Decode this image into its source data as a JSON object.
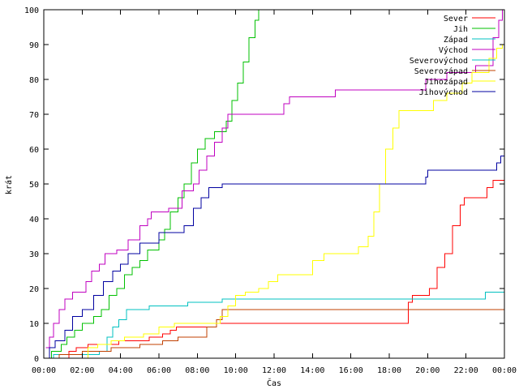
{
  "chart_data": {
    "type": "line",
    "xlabel": "Čas",
    "ylabel": "krát",
    "xlim": [
      0,
      24
    ],
    "ylim": [
      0,
      100
    ],
    "grid": false,
    "legend_position": "top-right",
    "x_ticks": [
      {
        "value": 0,
        "label": "00:00"
      },
      {
        "value": 2,
        "label": "02:00"
      },
      {
        "value": 4,
        "label": "04:00"
      },
      {
        "value": 6,
        "label": "06:00"
      },
      {
        "value": 8,
        "label": "08:00"
      },
      {
        "value": 10,
        "label": "10:00"
      },
      {
        "value": 12,
        "label": "12:00"
      },
      {
        "value": 14,
        "label": "14:00"
      },
      {
        "value": 16,
        "label": "16:00"
      },
      {
        "value": 18,
        "label": "18:00"
      },
      {
        "value": 20,
        "label": "20:00"
      },
      {
        "value": 22,
        "label": "22:00"
      },
      {
        "value": 24,
        "label": "00:00"
      }
    ],
    "y_ticks": [
      0,
      10,
      20,
      30,
      40,
      50,
      60,
      70,
      80,
      90,
      100
    ],
    "series": [
      {
        "name": "Sever",
        "color": "#ff0000",
        "points": [
          [
            1.1,
            0
          ],
          [
            1.3,
            2
          ],
          [
            1.7,
            3
          ],
          [
            2.3,
            4
          ],
          [
            3.9,
            5
          ],
          [
            5.5,
            6
          ],
          [
            6.2,
            7
          ],
          [
            6.6,
            8
          ],
          [
            6.9,
            9
          ],
          [
            9.0,
            10
          ],
          [
            19.0,
            16
          ],
          [
            19.2,
            18
          ],
          [
            20.1,
            20
          ],
          [
            20.5,
            26
          ],
          [
            20.9,
            30
          ],
          [
            21.3,
            38
          ],
          [
            21.7,
            44
          ],
          [
            21.9,
            46
          ],
          [
            23.1,
            49
          ],
          [
            23.4,
            51
          ],
          [
            24.0,
            52
          ]
        ]
      },
      {
        "name": "Jih",
        "color": "#00c000",
        "points": [
          [
            0,
            0
          ],
          [
            0.4,
            2
          ],
          [
            0.9,
            4
          ],
          [
            1.2,
            6
          ],
          [
            1.6,
            8
          ],
          [
            2.0,
            10
          ],
          [
            2.6,
            12
          ],
          [
            3.0,
            14
          ],
          [
            3.4,
            18
          ],
          [
            3.8,
            20
          ],
          [
            4.2,
            24
          ],
          [
            4.6,
            26
          ],
          [
            5.0,
            28
          ],
          [
            5.4,
            31
          ],
          [
            6.0,
            34
          ],
          [
            6.3,
            37
          ],
          [
            6.6,
            42
          ],
          [
            7.0,
            46
          ],
          [
            7.3,
            50
          ],
          [
            7.7,
            56
          ],
          [
            8.0,
            60
          ],
          [
            8.4,
            63
          ],
          [
            8.9,
            65
          ],
          [
            9.5,
            68
          ],
          [
            9.8,
            74
          ],
          [
            10.1,
            79
          ],
          [
            10.4,
            85
          ],
          [
            10.7,
            92
          ],
          [
            11.0,
            97
          ],
          [
            11.2,
            100
          ]
        ]
      },
      {
        "name": "Západ",
        "color": "#00c0c0",
        "points": [
          [
            0,
            0
          ],
          [
            0.5,
            1
          ],
          [
            2.9,
            2
          ],
          [
            3.3,
            6
          ],
          [
            3.6,
            9
          ],
          [
            3.9,
            11
          ],
          [
            4.3,
            14
          ],
          [
            5.1,
            14
          ],
          [
            5.5,
            15
          ],
          [
            7.5,
            16
          ],
          [
            9.3,
            17
          ],
          [
            22.9,
            17
          ],
          [
            23.0,
            19
          ],
          [
            24.0,
            19
          ]
        ]
      },
      {
        "name": "Východ",
        "color": "#c000c0",
        "points": [
          [
            0.1,
            3
          ],
          [
            0.3,
            6
          ],
          [
            0.5,
            10
          ],
          [
            0.8,
            14
          ],
          [
            1.1,
            17
          ],
          [
            1.5,
            19
          ],
          [
            2.2,
            22
          ],
          [
            2.5,
            25
          ],
          [
            2.9,
            27
          ],
          [
            3.2,
            30
          ],
          [
            3.8,
            31
          ],
          [
            4.4,
            34
          ],
          [
            5.0,
            38
          ],
          [
            5.4,
            40
          ],
          [
            5.6,
            42
          ],
          [
            6.0,
            42
          ],
          [
            6.5,
            43
          ],
          [
            7.2,
            48
          ],
          [
            7.8,
            50
          ],
          [
            8.1,
            54
          ],
          [
            8.5,
            58
          ],
          [
            8.9,
            62
          ],
          [
            9.3,
            66
          ],
          [
            9.6,
            70
          ],
          [
            11.0,
            70
          ],
          [
            12.2,
            70
          ],
          [
            12.5,
            73
          ],
          [
            12.8,
            75
          ],
          [
            13.6,
            75
          ],
          [
            14.9,
            75
          ],
          [
            15.2,
            77
          ],
          [
            18.5,
            77
          ],
          [
            19.9,
            80
          ],
          [
            21.0,
            82
          ],
          [
            22.5,
            84
          ],
          [
            23.4,
            92
          ],
          [
            23.7,
            97
          ],
          [
            23.9,
            100
          ]
        ]
      },
      {
        "name": "Severovýchod",
        "color": "#00c0c0",
        "points": []
      },
      {
        "name": "Severozápad",
        "color": "#c04000",
        "points": [
          [
            0,
            0
          ],
          [
            0.8,
            1
          ],
          [
            2.0,
            2
          ],
          [
            3.5,
            3
          ],
          [
            5.0,
            4
          ],
          [
            6.2,
            5
          ],
          [
            7.0,
            6
          ],
          [
            8.5,
            9
          ],
          [
            9.0,
            11
          ],
          [
            9.3,
            14
          ],
          [
            24.0,
            14
          ]
        ]
      },
      {
        "name": "Jihozápad",
        "color": "#ffff00",
        "points": [
          [
            1.9,
            0
          ],
          [
            2.3,
            3
          ],
          [
            2.8,
            4
          ],
          [
            3.5,
            5
          ],
          [
            4.2,
            6
          ],
          [
            5.2,
            7
          ],
          [
            6.0,
            9
          ],
          [
            6.8,
            10
          ],
          [
            9.2,
            12
          ],
          [
            9.6,
            15
          ],
          [
            10.0,
            18
          ],
          [
            10.5,
            19
          ],
          [
            11.2,
            20
          ],
          [
            11.7,
            22
          ],
          [
            12.2,
            24
          ],
          [
            13.5,
            24
          ],
          [
            14.0,
            28
          ],
          [
            14.6,
            30
          ],
          [
            16.1,
            30
          ],
          [
            16.4,
            32
          ],
          [
            16.9,
            35
          ],
          [
            17.2,
            42
          ],
          [
            17.5,
            50
          ],
          [
            17.8,
            60
          ],
          [
            18.2,
            66
          ],
          [
            18.5,
            71
          ],
          [
            19.9,
            71
          ],
          [
            20.3,
            74
          ],
          [
            21.0,
            76
          ],
          [
            21.8,
            79
          ],
          [
            22.3,
            82
          ],
          [
            23.2,
            86
          ],
          [
            23.6,
            89
          ],
          [
            23.9,
            90
          ]
        ]
      },
      {
        "name": "Jihovýchod",
        "color": "#0000a0",
        "points": [
          [
            0.1,
            0
          ],
          [
            0.3,
            3
          ],
          [
            0.6,
            5
          ],
          [
            1.1,
            8
          ],
          [
            1.5,
            12
          ],
          [
            2.0,
            14
          ],
          [
            2.6,
            18
          ],
          [
            3.1,
            22
          ],
          [
            3.6,
            25
          ],
          [
            4.0,
            27
          ],
          [
            4.4,
            30
          ],
          [
            5.0,
            33
          ],
          [
            5.6,
            33
          ],
          [
            6.0,
            36
          ],
          [
            7.3,
            38
          ],
          [
            7.8,
            43
          ],
          [
            8.2,
            46
          ],
          [
            8.6,
            49
          ],
          [
            9.3,
            50
          ],
          [
            18.0,
            50
          ],
          [
            19.3,
            50
          ],
          [
            19.9,
            52
          ],
          [
            20.0,
            54
          ],
          [
            22.8,
            54
          ],
          [
            23.6,
            56
          ],
          [
            23.8,
            58
          ],
          [
            24.0,
            60
          ]
        ]
      }
    ]
  }
}
